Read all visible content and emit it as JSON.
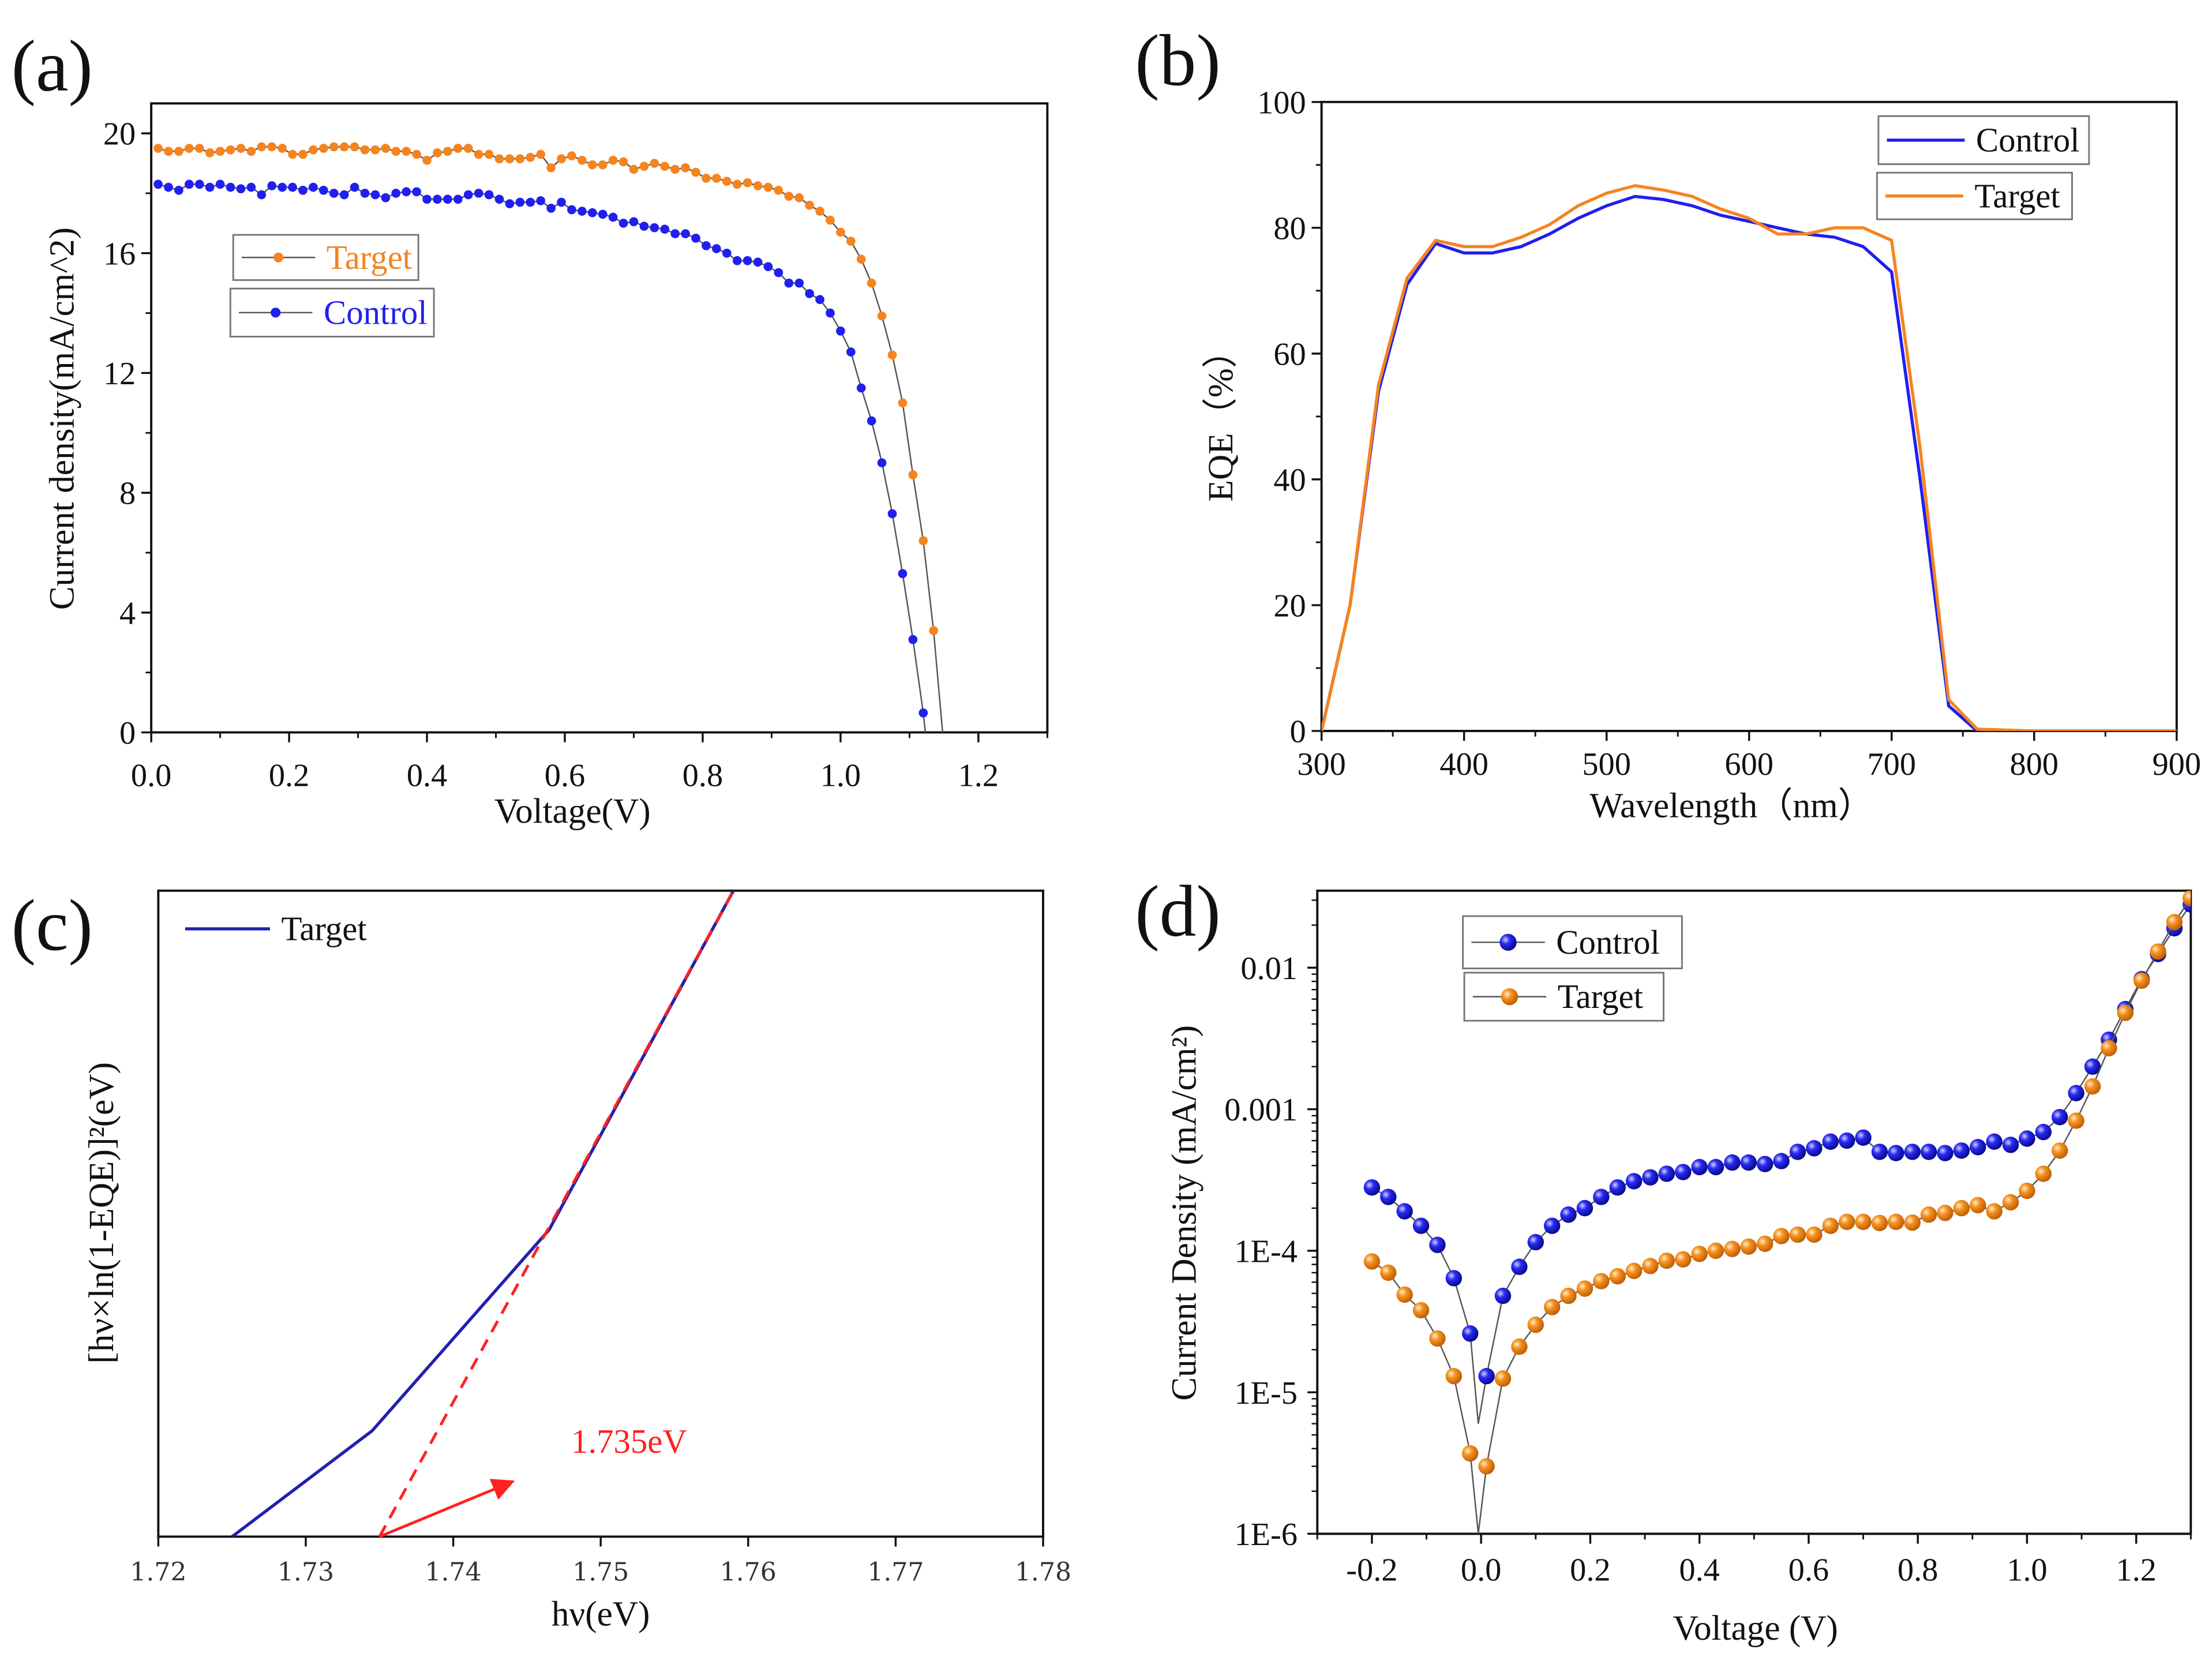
{
  "chart_data": [
    {
      "panel_label": "(a)",
      "type": "scatter",
      "xlabel": "Voltage(V)",
      "ylabel": "Current density(mA/cm^2)",
      "xlim": [
        0,
        1.3
      ],
      "ylim": [
        0,
        21
      ],
      "xscale": "linear",
      "yscale": "linear",
      "grid": false,
      "legend": "left",
      "xticks": [
        "0.0",
        "0.2",
        "0.4",
        "0.6",
        "0.8",
        "1.0",
        "1.2"
      ],
      "yticks": [
        "0",
        "4",
        "8",
        "12",
        "16",
        "20"
      ],
      "series": [
        {
          "name": "Target",
          "color": "#F5841F",
          "line_end": [
            1.148,
            0
          ],
          "x": [
            0.01,
            0.025,
            0.04,
            0.055,
            0.07,
            0.085,
            0.1,
            0.115,
            0.13,
            0.145,
            0.16,
            0.175,
            0.19,
            0.205,
            0.22,
            0.235,
            0.25,
            0.265,
            0.28,
            0.295,
            0.31,
            0.325,
            0.34,
            0.355,
            0.37,
            0.385,
            0.4,
            0.415,
            0.43,
            0.445,
            0.46,
            0.475,
            0.49,
            0.505,
            0.52,
            0.535,
            0.55,
            0.565,
            0.58,
            0.595,
            0.61,
            0.625,
            0.64,
            0.655,
            0.67,
            0.685,
            0.7,
            0.715,
            0.73,
            0.745,
            0.76,
            0.775,
            0.79,
            0.805,
            0.82,
            0.835,
            0.85,
            0.865,
            0.88,
            0.895,
            0.91,
            0.925,
            0.94,
            0.955,
            0.97,
            0.985,
            1.0,
            1.015,
            1.03,
            1.045,
            1.06,
            1.075,
            1.09,
            1.105,
            1.12,
            1.135
          ],
          "y": [
            19.5,
            19.4,
            19.4,
            19.5,
            19.5,
            19.35,
            19.4,
            19.45,
            19.5,
            19.4,
            19.55,
            19.55,
            19.5,
            19.3,
            19.3,
            19.45,
            19.5,
            19.55,
            19.55,
            19.55,
            19.45,
            19.45,
            19.5,
            19.4,
            19.4,
            19.3,
            19.1,
            19.35,
            19.4,
            19.5,
            19.5,
            19.3,
            19.3,
            19.15,
            19.15,
            19.15,
            19.2,
            19.3,
            18.85,
            19.15,
            19.25,
            19.1,
            18.95,
            18.95,
            19.1,
            19.05,
            18.8,
            18.9,
            19.0,
            18.9,
            18.8,
            18.85,
            18.7,
            18.5,
            18.5,
            18.4,
            18.3,
            18.35,
            18.25,
            18.2,
            18.1,
            17.9,
            17.85,
            17.6,
            17.4,
            17.1,
            16.7,
            16.4,
            15.8,
            15.0,
            13.9,
            12.6,
            11.0,
            8.6,
            6.4,
            3.4
          ]
        },
        {
          "name": "Control",
          "color": "#1F1FF0",
          "line_end": [
            1.123,
            0
          ],
          "x": [
            0.01,
            0.025,
            0.04,
            0.055,
            0.07,
            0.085,
            0.1,
            0.115,
            0.13,
            0.145,
            0.16,
            0.175,
            0.19,
            0.205,
            0.22,
            0.235,
            0.25,
            0.265,
            0.28,
            0.295,
            0.31,
            0.325,
            0.34,
            0.355,
            0.37,
            0.385,
            0.4,
            0.415,
            0.43,
            0.445,
            0.46,
            0.475,
            0.49,
            0.505,
            0.52,
            0.535,
            0.55,
            0.565,
            0.58,
            0.595,
            0.61,
            0.625,
            0.64,
            0.655,
            0.67,
            0.685,
            0.7,
            0.715,
            0.73,
            0.745,
            0.76,
            0.775,
            0.79,
            0.805,
            0.82,
            0.835,
            0.85,
            0.865,
            0.88,
            0.895,
            0.91,
            0.925,
            0.94,
            0.955,
            0.97,
            0.985,
            1.0,
            1.015,
            1.03,
            1.045,
            1.06,
            1.075,
            1.09,
            1.105,
            1.12
          ],
          "y": [
            18.3,
            18.2,
            18.1,
            18.3,
            18.3,
            18.2,
            18.3,
            18.2,
            18.15,
            18.2,
            17.95,
            18.25,
            18.2,
            18.2,
            18.1,
            18.2,
            18.1,
            18.0,
            17.95,
            18.2,
            18.0,
            17.95,
            17.85,
            18.0,
            18.05,
            18.05,
            17.8,
            17.8,
            17.8,
            17.8,
            17.95,
            18.0,
            17.95,
            17.8,
            17.65,
            17.7,
            17.7,
            17.75,
            17.5,
            17.7,
            17.45,
            17.4,
            17.35,
            17.3,
            17.2,
            17.0,
            17.05,
            16.9,
            16.85,
            16.8,
            16.65,
            16.65,
            16.5,
            16.25,
            16.15,
            16.0,
            15.75,
            15.75,
            15.7,
            15.55,
            15.35,
            15.0,
            15.0,
            14.65,
            14.45,
            14.0,
            13.4,
            12.7,
            11.5,
            10.4,
            9.0,
            7.3,
            5.3,
            3.1,
            0.65
          ]
        }
      ]
    },
    {
      "panel_label": "(b)",
      "type": "line",
      "xlabel": "Wavelength（nm）",
      "ylabel": "EQE（%）",
      "xlim": [
        300,
        900
      ],
      "ylim": [
        0,
        100
      ],
      "xscale": "linear",
      "yscale": "linear",
      "grid": false,
      "legend": "top-right",
      "xticks": [
        "300",
        "400",
        "500",
        "600",
        "700",
        "800",
        "900"
      ],
      "yticks": [
        "0",
        "20",
        "40",
        "60",
        "80",
        "100"
      ],
      "series": [
        {
          "name": "Control",
          "color": "#1F1FF0",
          "x": [
            300,
            320,
            340,
            360,
            380,
            400,
            420,
            440,
            460,
            480,
            500,
            520,
            540,
            560,
            580,
            600,
            620,
            640,
            660,
            680,
            700,
            720,
            740,
            760,
            800,
            900
          ],
          "y": [
            0,
            20,
            54,
            71,
            77.5,
            76,
            76,
            77,
            79,
            81.5,
            83.5,
            85,
            84.5,
            83.5,
            82,
            81,
            80,
            79,
            78.5,
            77,
            73,
            40,
            4,
            0,
            0,
            0
          ]
        },
        {
          "name": "Target",
          "color": "#F5841F",
          "x": [
            300,
            320,
            340,
            360,
            380,
            400,
            420,
            440,
            460,
            480,
            500,
            520,
            540,
            560,
            580,
            600,
            620,
            640,
            660,
            680,
            700,
            720,
            740,
            760,
            800,
            850,
            900
          ],
          "y": [
            0,
            20,
            55,
            72,
            78,
            77,
            77,
            78.5,
            80.5,
            83.5,
            85.5,
            86.7,
            86,
            85,
            83,
            81.5,
            79,
            79,
            80,
            80,
            78,
            45,
            5,
            0.3,
            0,
            0,
            0
          ]
        }
      ]
    },
    {
      "panel_label": "(c)",
      "type": "line",
      "xlabel": "hν(eV)",
      "ylabel": "[hν×ln(1-EQE)]²(eV)",
      "xlim": [
        1.72,
        1.78
      ],
      "ylim": [
        0,
        1
      ],
      "xscale": "linear",
      "yscale": "linear",
      "grid": false,
      "legend": "top-left",
      "xticks": [
        "1.72",
        "1.73",
        "1.74",
        "1.75",
        "1.76",
        "1.77",
        "1.78"
      ],
      "yticks": [],
      "series": [
        {
          "name": "Target",
          "color": "#2020B0",
          "x": [
            1.725,
            1.7345,
            1.7465,
            1.759
          ],
          "y": [
            0,
            0.164,
            0.475,
            1.0
          ]
        }
      ],
      "fit": {
        "color": "#FF2020",
        "x": [
          1.735,
          1.759
        ],
        "y": [
          0,
          1.0
        ]
      },
      "annotation": {
        "text": "1.735eV",
        "color": "#FF2020",
        "arrow_from": [
          1.735,
          0
        ],
        "arrow_to": [
          1.744,
          0.085
        ],
        "at": [
          1.748,
          0.13
        ]
      }
    },
    {
      "panel_label": "(d)",
      "type": "scatter",
      "xlabel": "Voltage (V)",
      "ylabel": "Current Density (mA/cm²)",
      "xlim": [
        -0.3,
        1.3
      ],
      "ylim": [
        1e-06,
        0.035
      ],
      "xscale": "linear",
      "yscale": "log",
      "grid": false,
      "legend": "top-left",
      "xticks": [
        "-0.2",
        "0.0",
        "0.2",
        "0.4",
        "0.6",
        "0.8",
        "1.0",
        "1.2"
      ],
      "yticks": [
        "1E-6",
        "1E-5",
        "1E-4",
        "0.001",
        "0.01"
      ],
      "ytick_values": [
        1e-06,
        1e-05,
        0.0001,
        0.001,
        0.01
      ],
      "series": [
        {
          "name": "Control",
          "color": "#1F1FF0",
          "line_dip": [
            -0.005,
            6e-06
          ],
          "x": [
            -0.2,
            -0.17,
            -0.14,
            -0.11,
            -0.08,
            -0.05,
            -0.02,
            0.01,
            0.04,
            0.07,
            0.1,
            0.13,
            0.16,
            0.19,
            0.22,
            0.25,
            0.28,
            0.31,
            0.34,
            0.37,
            0.4,
            0.43,
            0.46,
            0.49,
            0.52,
            0.55,
            0.58,
            0.61,
            0.64,
            0.67,
            0.7,
            0.73,
            0.76,
            0.79,
            0.82,
            0.85,
            0.88,
            0.91,
            0.94,
            0.97,
            1.0,
            1.03,
            1.06,
            1.09,
            1.12,
            1.15,
            1.18,
            1.21,
            1.24,
            1.27,
            1.3
          ],
          "y": [
            0.00028,
            0.00024,
            0.00019,
            0.00015,
            0.00011,
            6.4e-05,
            2.6e-05,
            1.3e-05,
            4.8e-05,
            7.7e-05,
            0.000115,
            0.00015,
            0.00018,
            0.0002,
            0.00024,
            0.00028,
            0.00031,
            0.00033,
            0.00035,
            0.00036,
            0.00039,
            0.00039,
            0.00042,
            0.00042,
            0.00041,
            0.00043,
            0.0005,
            0.00053,
            0.00059,
            0.0006,
            0.00063,
            0.0005,
            0.00049,
            0.0005,
            0.0005,
            0.00049,
            0.00051,
            0.00054,
            0.00059,
            0.00056,
            0.00062,
            0.00069,
            0.00088,
            0.0013,
            0.002,
            0.0031,
            0.0051,
            0.0083,
            0.0125,
            0.019,
            0.028
          ]
        },
        {
          "name": "Target",
          "color": "#F5841F",
          "line_dip": [
            -0.005,
            1e-06
          ],
          "x": [
            -0.2,
            -0.17,
            -0.14,
            -0.11,
            -0.08,
            -0.05,
            -0.02,
            0.01,
            0.04,
            0.07,
            0.1,
            0.13,
            0.16,
            0.19,
            0.22,
            0.25,
            0.28,
            0.31,
            0.34,
            0.37,
            0.4,
            0.43,
            0.46,
            0.49,
            0.52,
            0.55,
            0.58,
            0.61,
            0.64,
            0.67,
            0.7,
            0.73,
            0.76,
            0.79,
            0.82,
            0.85,
            0.88,
            0.91,
            0.94,
            0.97,
            1.0,
            1.03,
            1.06,
            1.09,
            1.12,
            1.15,
            1.18,
            1.21,
            1.24,
            1.27,
            1.3
          ],
          "y": [
            8.4e-05,
            7e-05,
            4.9e-05,
            3.8e-05,
            2.4e-05,
            1.3e-05,
            3.7e-06,
            3e-06,
            1.25e-05,
            2.1e-05,
            3e-05,
            4e-05,
            4.8e-05,
            5.4e-05,
            6.1e-05,
            6.6e-05,
            7.2e-05,
            7.8e-05,
            8.5e-05,
            8.7e-05,
            9.5e-05,
            0.0001,
            0.000103,
            0.000107,
            0.000112,
            0.000127,
            0.00013,
            0.00013,
            0.00015,
            0.00016,
            0.00016,
            0.000157,
            0.00016,
            0.000158,
            0.00018,
            0.000185,
            0.0002,
            0.00021,
            0.00019,
            0.00022,
            0.000265,
            0.00035,
            0.00051,
            0.00083,
            0.00145,
            0.0027,
            0.0048,
            0.0081,
            0.013,
            0.021,
            0.031
          ]
        }
      ]
    }
  ]
}
